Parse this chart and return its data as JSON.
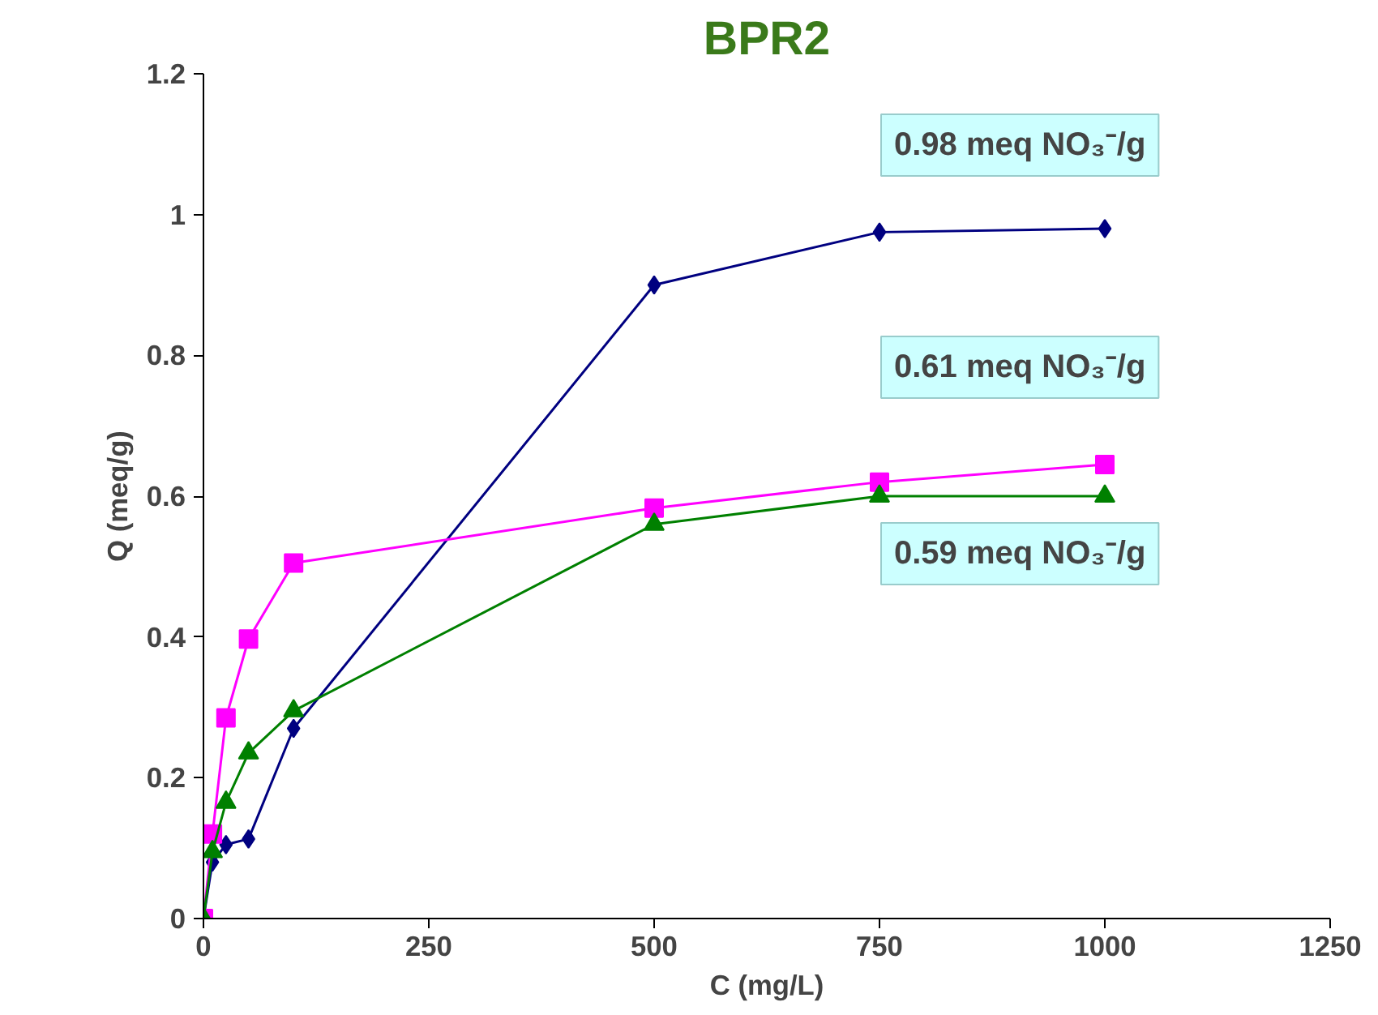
{
  "chart_data": {
    "type": "line",
    "title": "BPR2",
    "xlabel": "C (mg/L)",
    "ylabel": "Q (meq/g)",
    "xlim": [
      0,
      1250
    ],
    "xticks": [
      0,
      250,
      500,
      750,
      1000,
      1250
    ],
    "ylim": [
      0,
      1.2
    ],
    "yticks": [
      0,
      0.2,
      0.4,
      0.6,
      0.8,
      1,
      1.2
    ],
    "grid": false,
    "series": [
      {
        "color": "#000080",
        "marker": "diamond",
        "x": [
          0,
          10,
          25,
          50,
          100,
          500,
          750,
          1000
        ],
        "values": [
          0,
          0.08,
          0.105,
          0.113,
          0.27,
          0.9,
          0.975,
          0.98
        ]
      },
      {
        "color": "#ff00ff",
        "marker": "square",
        "x": [
          0,
          10,
          25,
          50,
          100,
          500,
          750,
          1000
        ],
        "values": [
          0,
          0.12,
          0.285,
          0.397,
          0.505,
          0.583,
          0.62,
          0.645
        ]
      },
      {
        "color": "#008000",
        "marker": "triangle",
        "x": [
          0,
          10,
          25,
          50,
          100,
          500,
          750,
          1000
        ],
        "values": [
          0,
          0.095,
          0.165,
          0.235,
          0.295,
          0.56,
          0.6,
          0.6
        ]
      }
    ],
    "annotations": [
      "0.98 meq NO₃⁻/g",
      "0.61 meq NO₃⁻/g",
      "0.59 meq NO₃⁻/g"
    ]
  }
}
